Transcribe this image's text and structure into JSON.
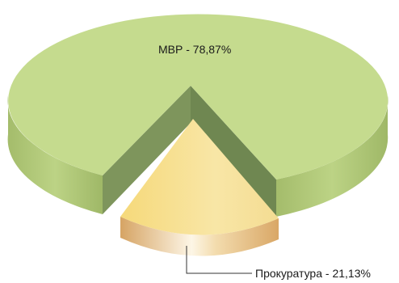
{
  "chart_data": {
    "type": "pie",
    "style": "3d-exploded",
    "categories": [
      "МВР",
      "Прокуратура"
    ],
    "values": [
      78.87,
      21.13
    ],
    "unit": "%",
    "labels": [
      "МВР - 78,87%",
      "Прокуратура - 21,13%"
    ],
    "colors": {
      "МВР": {
        "top": "#c5db8e",
        "side_light": "#a7bf6f",
        "side_dark": "#7b9359"
      },
      "Прокуратура": {
        "top_light": "#f8e7a8",
        "top_dark": "#f3d57a",
        "side_edge": "#d9a968",
        "side_mid": "#fbf1dc"
      }
    },
    "legend": "none",
    "grid": false
  }
}
